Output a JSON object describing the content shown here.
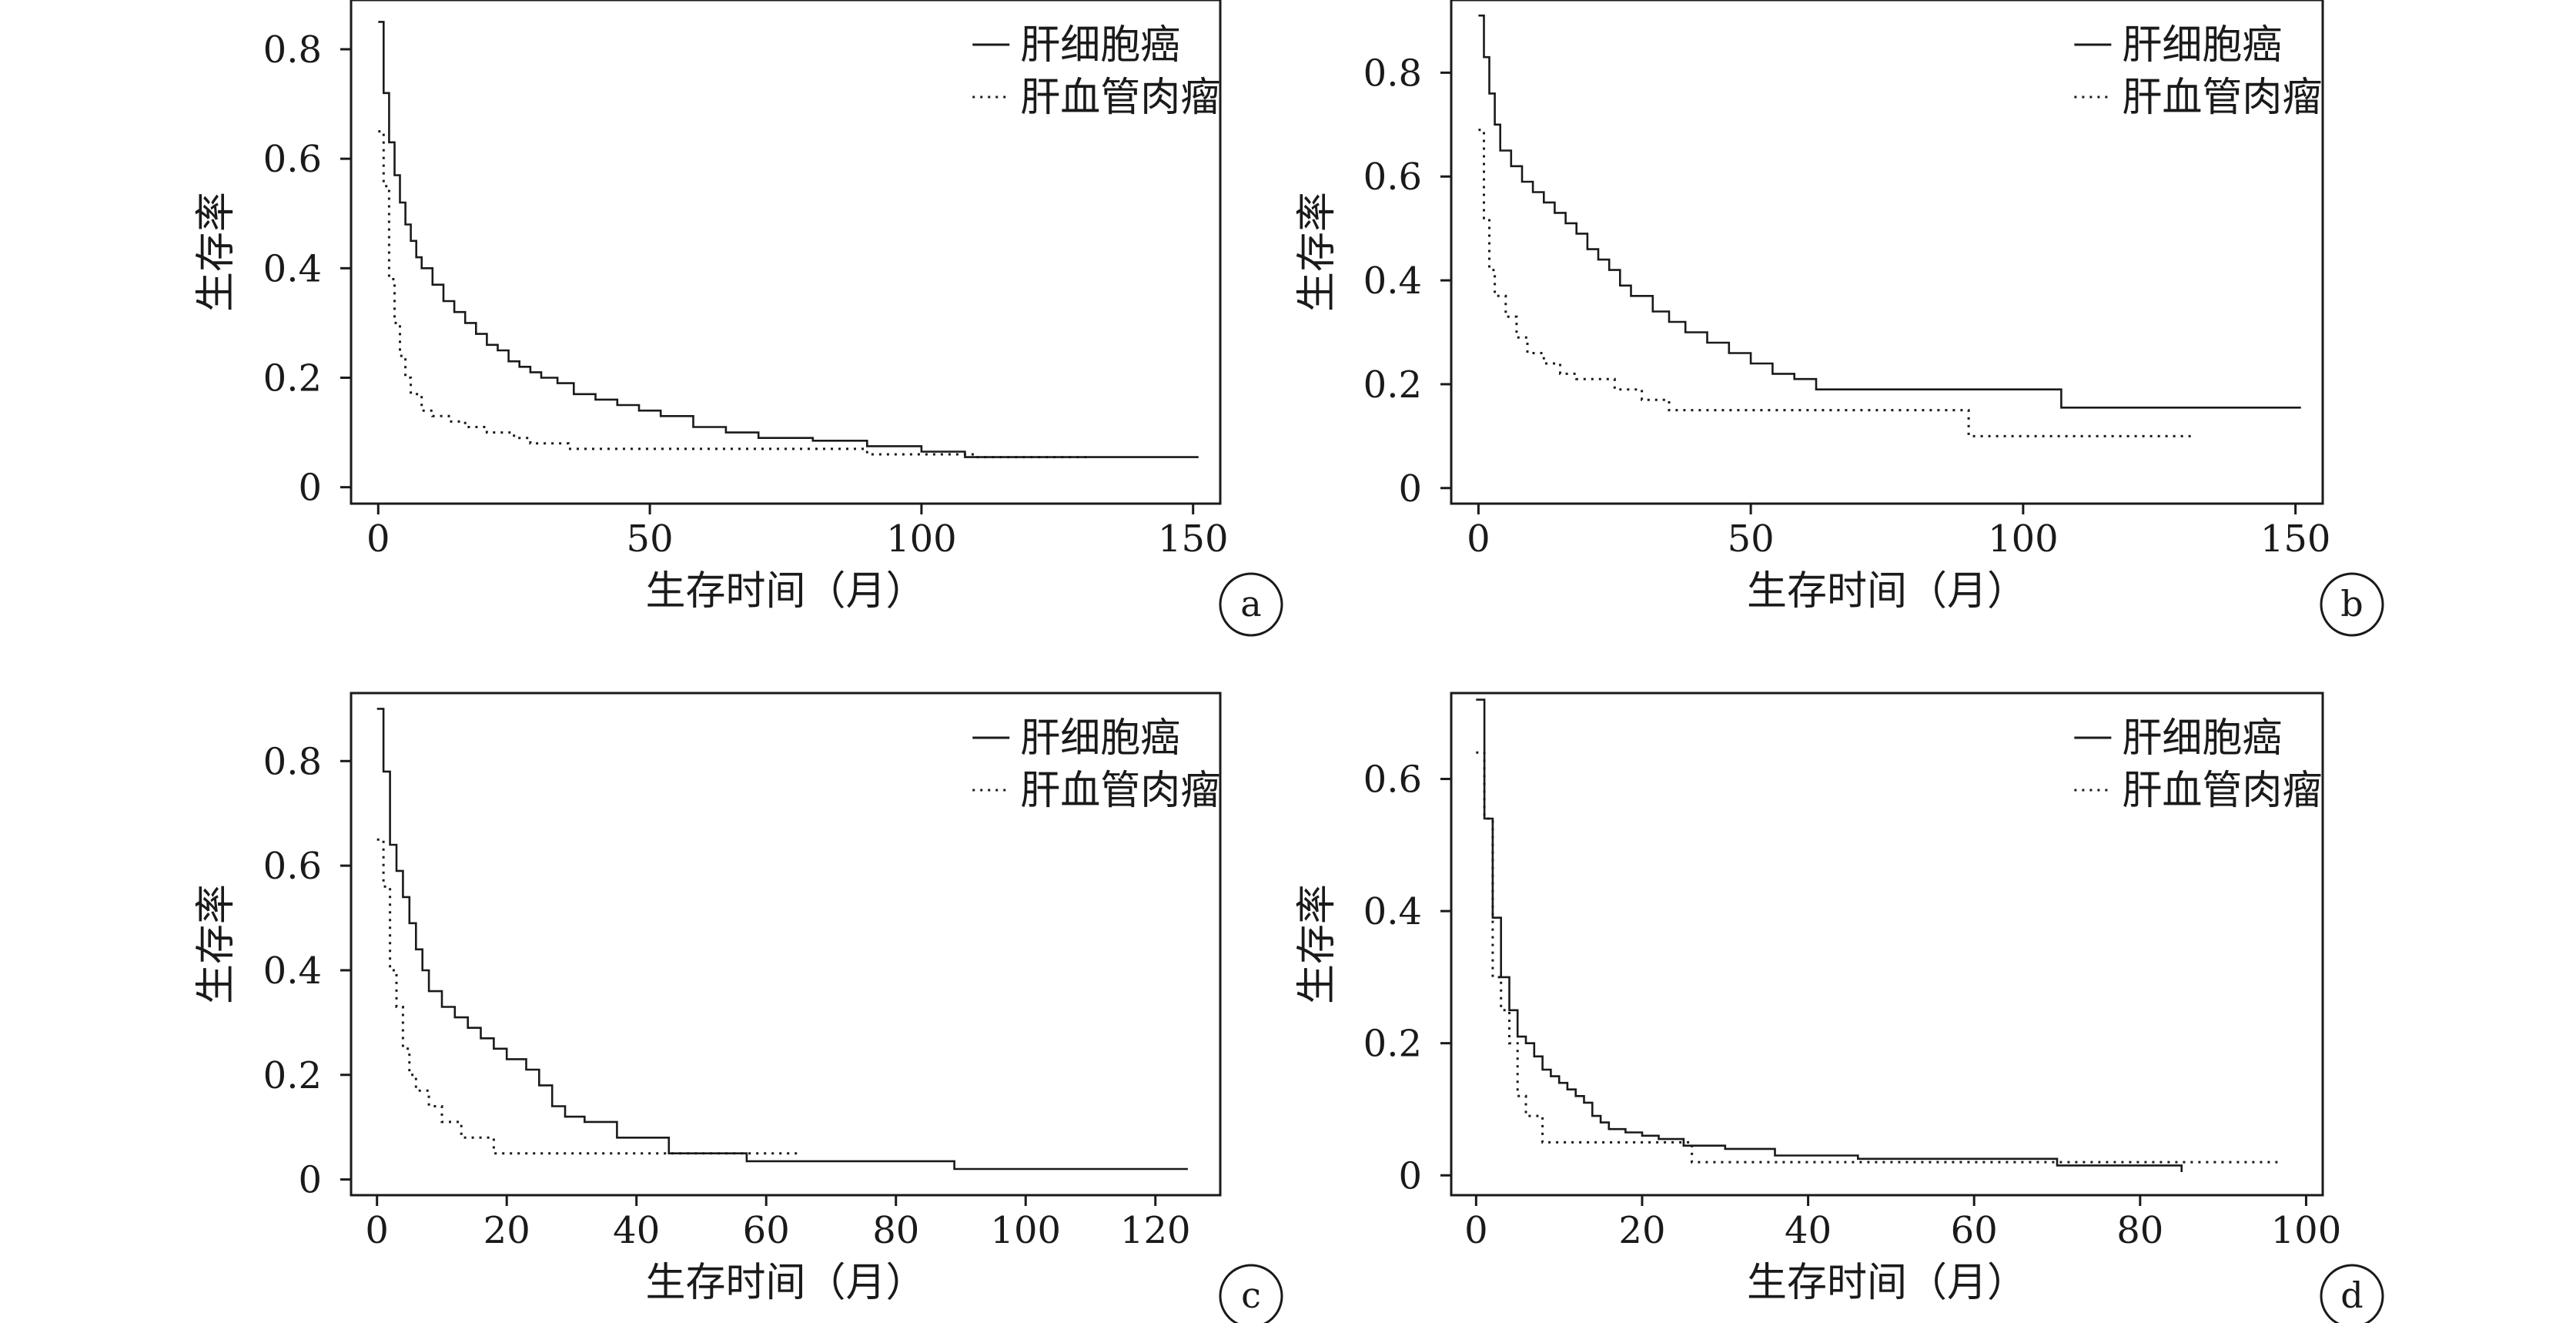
{
  "chart_data": [
    {
      "type": "line",
      "panel_label": "a",
      "xlabel": "生存时间（月）",
      "ylabel": "生存率",
      "xlim": [
        -5,
        155
      ],
      "ylim": [
        -0.03,
        0.89
      ],
      "xticks": [
        0,
        50,
        100,
        150
      ],
      "yticks": [
        0,
        0.2,
        0.4,
        0.6,
        0.8
      ],
      "ytick_labels": [
        "0",
        "0.2",
        "0.4",
        "0.6",
        "0.8"
      ],
      "legend_position": "top-right",
      "series": [
        {
          "name": "肝细胞癌",
          "line_style": "solid",
          "x": [
            0,
            1,
            2,
            3,
            4,
            5,
            6,
            7,
            8,
            10,
            12,
            14,
            16,
            18,
            20,
            22,
            24,
            26,
            28,
            30,
            33,
            36,
            40,
            44,
            48,
            52,
            58,
            64,
            70,
            80,
            90,
            100,
            108,
            151
          ],
          "y": [
            0.85,
            0.72,
            0.63,
            0.57,
            0.52,
            0.48,
            0.45,
            0.42,
            0.4,
            0.37,
            0.34,
            0.32,
            0.3,
            0.28,
            0.26,
            0.25,
            0.23,
            0.22,
            0.21,
            0.2,
            0.19,
            0.17,
            0.16,
            0.15,
            0.14,
            0.13,
            0.11,
            0.1,
            0.09,
            0.085,
            0.075,
            0.065,
            0.055,
            0.055
          ]
        },
        {
          "name": "肝血管肉瘤",
          "line_style": "dotted",
          "x": [
            0,
            1,
            2,
            3,
            4,
            5,
            6,
            8,
            10,
            13,
            16,
            20,
            25,
            28,
            35,
            50,
            90,
            110,
            131
          ],
          "y": [
            0.65,
            0.55,
            0.38,
            0.3,
            0.24,
            0.2,
            0.17,
            0.14,
            0.13,
            0.12,
            0.11,
            0.1,
            0.09,
            0.08,
            0.07,
            0.07,
            0.06,
            0.055,
            0.055
          ]
        }
      ]
    },
    {
      "type": "line",
      "panel_label": "b",
      "xlabel": "生存时间（月）",
      "ylabel": "生存率",
      "xlim": [
        -5,
        155
      ],
      "ylim": [
        -0.03,
        0.94
      ],
      "xticks": [
        0,
        50,
        100,
        150
      ],
      "yticks": [
        0,
        0.2,
        0.4,
        0.6,
        0.8
      ],
      "ytick_labels": [
        "0",
        "0.2",
        "0.4",
        "0.6",
        "0.8"
      ],
      "legend_position": "top-right",
      "series": [
        {
          "name": "肝细胞癌",
          "line_style": "solid",
          "x": [
            0,
            1,
            2,
            3,
            4,
            6,
            8,
            10,
            12,
            14,
            16,
            18,
            20,
            22,
            24,
            26,
            28,
            32,
            35,
            38,
            42,
            46,
            50,
            54,
            58,
            62,
            107,
            151
          ],
          "y": [
            0.91,
            0.83,
            0.76,
            0.7,
            0.65,
            0.62,
            0.59,
            0.57,
            0.55,
            0.53,
            0.51,
            0.49,
            0.46,
            0.44,
            0.42,
            0.39,
            0.37,
            0.34,
            0.32,
            0.3,
            0.28,
            0.26,
            0.24,
            0.22,
            0.21,
            0.19,
            0.155,
            0.155
          ]
        },
        {
          "name": "肝血管肉瘤",
          "line_style": "dotted",
          "x": [
            0,
            1,
            2,
            3,
            5,
            7,
            9,
            12,
            15,
            18,
            25,
            30,
            35,
            90,
            131
          ],
          "y": [
            0.69,
            0.52,
            0.42,
            0.37,
            0.33,
            0.29,
            0.26,
            0.24,
            0.22,
            0.21,
            0.19,
            0.17,
            0.15,
            0.1,
            0.1
          ]
        }
      ]
    },
    {
      "type": "line",
      "panel_label": "c",
      "xlabel": "生存时间（月）",
      "ylabel": "生存率",
      "xlim": [
        -4,
        130
      ],
      "ylim": [
        -0.03,
        0.93
      ],
      "xticks": [
        0,
        20,
        40,
        60,
        80,
        100,
        120
      ],
      "yticks": [
        0,
        0.2,
        0.4,
        0.6,
        0.8
      ],
      "ytick_labels": [
        "0",
        "0.2",
        "0.4",
        "0.6",
        "0.8"
      ],
      "legend_position": "top-right",
      "series": [
        {
          "name": "肝细胞癌",
          "line_style": "solid",
          "x": [
            0,
            1,
            2,
            3,
            4,
            5,
            6,
            7,
            8,
            10,
            12,
            14,
            16,
            18,
            20,
            23,
            25,
            27,
            29,
            32,
            37,
            45,
            57,
            89,
            125
          ],
          "y": [
            0.9,
            0.78,
            0.64,
            0.59,
            0.54,
            0.49,
            0.44,
            0.4,
            0.36,
            0.33,
            0.31,
            0.29,
            0.27,
            0.25,
            0.23,
            0.21,
            0.18,
            0.14,
            0.12,
            0.11,
            0.08,
            0.05,
            0.035,
            0.02,
            0.02
          ]
        },
        {
          "name": "肝血管肉瘤",
          "line_style": "dotted",
          "x": [
            0,
            1,
            2,
            3,
            4,
            5,
            6,
            8,
            10,
            13,
            18,
            65
          ],
          "y": [
            0.65,
            0.56,
            0.4,
            0.33,
            0.25,
            0.2,
            0.17,
            0.14,
            0.11,
            0.08,
            0.05,
            0.05
          ]
        }
      ]
    },
    {
      "type": "line",
      "panel_label": "d",
      "xlabel": "生存时间（月）",
      "ylabel": "生存率",
      "xlim": [
        -3,
        102
      ],
      "ylim": [
        -0.03,
        0.73
      ],
      "xticks": [
        0,
        20,
        40,
        60,
        80,
        100
      ],
      "yticks": [
        0,
        0.2,
        0.4,
        0.6
      ],
      "ytick_labels": [
        "0",
        "0.2",
        "0.4",
        "0.6"
      ],
      "legend_position": "top-right",
      "series": [
        {
          "name": "肝细胞癌",
          "line_style": "solid",
          "x": [
            0,
            1,
            2,
            3,
            4,
            5,
            6,
            7,
            8,
            9,
            10,
            11,
            12,
            13,
            14,
            15,
            16,
            18,
            20,
            22,
            25,
            30,
            36,
            46,
            70,
            84,
            85
          ],
          "y": [
            0.72,
            0.54,
            0.39,
            0.3,
            0.25,
            0.21,
            0.2,
            0.18,
            0.16,
            0.15,
            0.14,
            0.13,
            0.12,
            0.11,
            0.09,
            0.08,
            0.07,
            0.065,
            0.06,
            0.055,
            0.045,
            0.04,
            0.03,
            0.025,
            0.015,
            0.015,
            0.005
          ]
        },
        {
          "name": "肝血管肉瘤",
          "line_style": "dotted",
          "x": [
            0,
            1,
            2,
            3,
            4,
            5,
            6,
            8,
            26,
            97
          ],
          "y": [
            0.64,
            0.54,
            0.3,
            0.25,
            0.2,
            0.12,
            0.09,
            0.05,
            0.02,
            0.02
          ]
        }
      ]
    }
  ]
}
